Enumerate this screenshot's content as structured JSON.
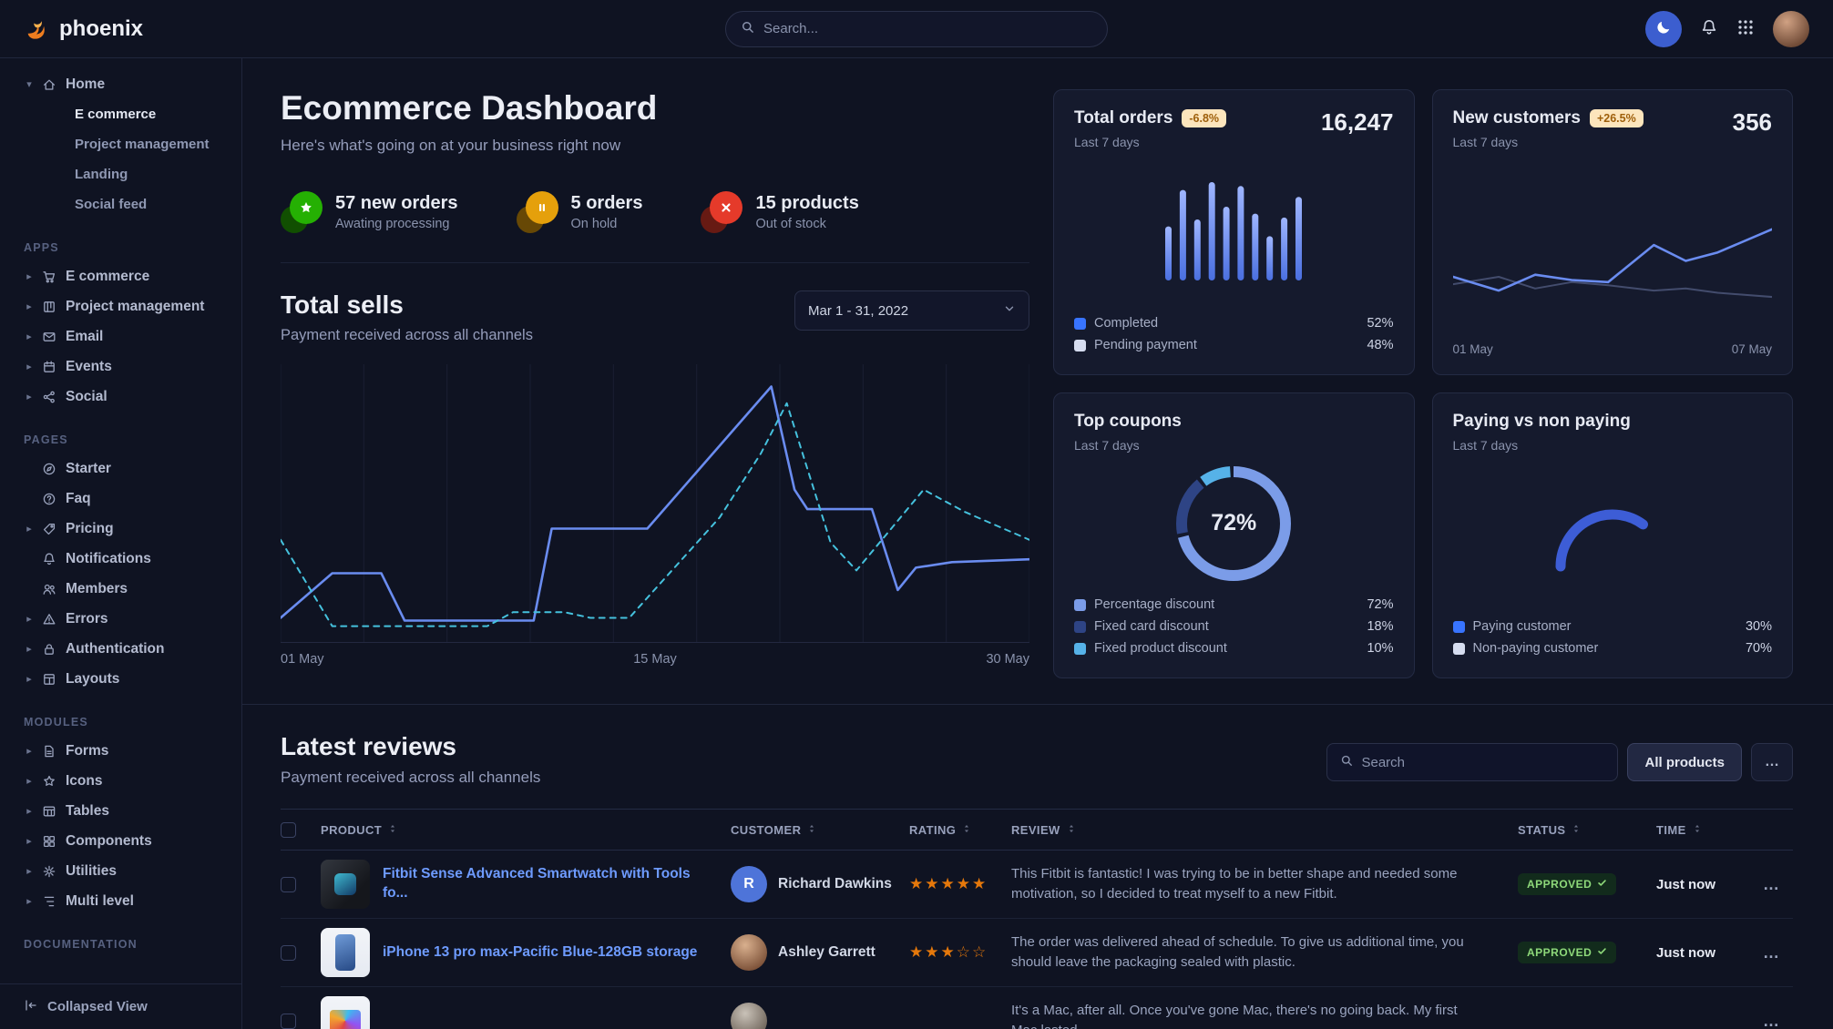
{
  "colors": {
    "accent": "#3874ff",
    "success": "#25b003",
    "warning": "#e5780b",
    "danger": "#ec2e01"
  },
  "topbar": {
    "brand": "phoenix",
    "search_placeholder": "Search..."
  },
  "sidebar": {
    "footer_label": "Collapsed View",
    "sections": [
      {
        "heading": "",
        "items": [
          {
            "label": "Home",
            "icon": "home",
            "caret": "down",
            "children": [
              {
                "label": "E commerce",
                "active": true
              },
              {
                "label": "Project management"
              },
              {
                "label": "Landing"
              },
              {
                "label": "Social feed"
              }
            ]
          }
        ]
      },
      {
        "heading": "APPS",
        "items": [
          {
            "label": "E commerce",
            "icon": "cart",
            "caret": "right"
          },
          {
            "label": "Project management",
            "icon": "kanban",
            "caret": "right"
          },
          {
            "label": "Email",
            "icon": "envelope",
            "caret": "right"
          },
          {
            "label": "Events",
            "icon": "calendar",
            "caret": "right"
          },
          {
            "label": "Social",
            "icon": "share",
            "caret": "right"
          }
        ]
      },
      {
        "heading": "PAGES",
        "items": [
          {
            "label": "Starter",
            "icon": "compass"
          },
          {
            "label": "Faq",
            "icon": "question"
          },
          {
            "label": "Pricing",
            "icon": "tag",
            "caret": "right"
          },
          {
            "label": "Notifications",
            "icon": "bell"
          },
          {
            "label": "Members",
            "icon": "users"
          },
          {
            "label": "Errors",
            "icon": "warning",
            "caret": "right"
          },
          {
            "label": "Authentication",
            "icon": "lock",
            "caret": "right"
          },
          {
            "label": "Layouts",
            "icon": "layout",
            "caret": "right"
          }
        ]
      },
      {
        "heading": "MODULES",
        "items": [
          {
            "label": "Forms",
            "icon": "file",
            "caret": "right"
          },
          {
            "label": "Icons",
            "icon": "star",
            "caret": "right"
          },
          {
            "label": "Tables",
            "icon": "table",
            "caret": "right"
          },
          {
            "label": "Components",
            "icon": "blocks",
            "caret": "right"
          },
          {
            "label": "Utilities",
            "icon": "gear",
            "caret": "right"
          },
          {
            "label": "Multi level",
            "icon": "tree",
            "caret": "right"
          }
        ]
      },
      {
        "heading": "DOCUMENTATION",
        "items": []
      }
    ]
  },
  "header": {
    "title": "Ecommerce Dashboard",
    "subtitle": "Here's what's going on at your business right now"
  },
  "stats": [
    {
      "value": "57 new orders",
      "caption": "Awating processing",
      "icon": "star-badge",
      "color": "#25b003"
    },
    {
      "value": "5 orders",
      "caption": "On hold",
      "icon": "pause-badge",
      "color": "#e5a00b"
    },
    {
      "value": "15 products",
      "caption": "Out of stock",
      "icon": "x-badge",
      "color": "#e53a2a"
    }
  ],
  "total_sells": {
    "title": "Total sells",
    "subtitle": "Payment received across all channels",
    "date_range": "Mar 1 - 31, 2022"
  },
  "cards": {
    "total_orders": {
      "title": "Total orders",
      "badge": "-6.8%",
      "period": "Last 7 days",
      "value": "16,247",
      "legend": [
        {
          "label": "Completed",
          "percent": "52%",
          "color": "#3874ff"
        },
        {
          "label": "Pending payment",
          "percent": "48%",
          "color": "#d6ddf0"
        }
      ]
    },
    "new_customers": {
      "title": "New customers",
      "badge": "+26.5%",
      "period": "Last 7 days",
      "value": "356",
      "x_labels": [
        "01 May",
        "07 May"
      ]
    },
    "top_coupons": {
      "title": "Top coupons",
      "period": "Last 7 days",
      "center_label": "72%",
      "legend": [
        {
          "label": "Percentage discount",
          "percent": "72%",
          "color": "#7b9ce8"
        },
        {
          "label": "Fixed card discount",
          "percent": "18%",
          "color": "#2e4485"
        },
        {
          "label": "Fixed product discount",
          "percent": "10%",
          "color": "#56b2e8"
        }
      ]
    },
    "paying": {
      "title": "Paying vs non paying",
      "period": "Last 7 days",
      "legend": [
        {
          "label": "Paying customer",
          "percent": "30%",
          "color": "#3874ff"
        },
        {
          "label": "Non-paying customer",
          "percent": "70%",
          "color": "#d6ddf0"
        }
      ]
    }
  },
  "chart_data": [
    {
      "id": "total-sells",
      "type": "line",
      "title": "Total sells",
      "x_labels": [
        "01 May",
        "15 May",
        "30 May"
      ],
      "x_range": [
        1,
        30
      ],
      "y_range": [
        0,
        100
      ],
      "grid": true,
      "series": [
        {
          "name": "payment-solid",
          "color": "#6a8cf0",
          "style": "solid",
          "width": 2.6,
          "points": [
            [
              1,
              9
            ],
            [
              3,
              25
            ],
            [
              4.9,
              25
            ],
            [
              5.8,
              8
            ],
            [
              10.8,
              8
            ],
            [
              11.5,
              41
            ],
            [
              15.2,
              41
            ],
            [
              20,
              92
            ],
            [
              20.9,
              55
            ],
            [
              21.4,
              48
            ],
            [
              23.9,
              48
            ],
            [
              24.9,
              19
            ],
            [
              25.6,
              27
            ],
            [
              27,
              29
            ],
            [
              30,
              30
            ]
          ]
        },
        {
          "name": "payment-dashed",
          "color": "#45c1dd",
          "style": "dashed",
          "width": 2,
          "points": [
            [
              1,
              37
            ],
            [
              3,
              6
            ],
            [
              9,
              6
            ],
            [
              10,
              11
            ],
            [
              12,
              11
            ],
            [
              13,
              9
            ],
            [
              14.5,
              9
            ],
            [
              18,
              45
            ],
            [
              19.6,
              68
            ],
            [
              20.6,
              86
            ],
            [
              22.3,
              36
            ],
            [
              23.3,
              26
            ],
            [
              25.9,
              55
            ],
            [
              27.5,
              47
            ],
            [
              30,
              37
            ]
          ]
        }
      ]
    },
    {
      "id": "total-orders",
      "type": "bar",
      "values": [
        55,
        92,
        62,
        100,
        75,
        96,
        68,
        45,
        64,
        85
      ],
      "ylim": [
        0,
        100
      ]
    },
    {
      "id": "new-customers",
      "type": "line",
      "x_labels": [
        "01 May",
        "07 May"
      ],
      "x_range": [
        0,
        7
      ],
      "y_range": [
        0,
        110
      ],
      "grid": false,
      "series": [
        {
          "name": "secondary",
          "color": "#434c6d",
          "style": "solid",
          "width": 2,
          "points": [
            [
              0,
              48
            ],
            [
              1,
              55
            ],
            [
              1.8,
              44
            ],
            [
              2.6,
              50
            ],
            [
              3.4,
              47
            ],
            [
              4.4,
              42
            ],
            [
              5.1,
              44
            ],
            [
              5.8,
              40
            ],
            [
              7,
              36
            ]
          ]
        },
        {
          "name": "primary",
          "color": "#6a8cf0",
          "style": "solid",
          "width": 2.6,
          "points": [
            [
              0,
              55
            ],
            [
              1,
              42
            ],
            [
              1.8,
              57
            ],
            [
              2.6,
              52
            ],
            [
              3.4,
              50
            ],
            [
              4.4,
              85
            ],
            [
              5.1,
              70
            ],
            [
              5.8,
              78
            ],
            [
              7,
              100
            ]
          ]
        }
      ]
    },
    {
      "id": "top-coupons",
      "type": "donut",
      "center_label": "72%",
      "segments": [
        {
          "label": "Percentage discount",
          "value": 72,
          "color": "#7b9ce8"
        },
        {
          "label": "Fixed card discount",
          "value": 18,
          "color": "#2e4485"
        },
        {
          "label": "Fixed product discount",
          "value": 10,
          "color": "#56b2e8"
        }
      ]
    },
    {
      "id": "paying-gauge",
      "type": "gauge",
      "arc_percent": 70,
      "color": "#3d5dd6",
      "segments": [
        {
          "label": "Paying customer",
          "value": 30
        },
        {
          "label": "Non-paying customer",
          "value": 70
        }
      ]
    }
  ],
  "reviews": {
    "title": "Latest reviews",
    "subtitle": "Payment received across all channels",
    "search_placeholder": "Search",
    "filter_button": "All products",
    "more_button": "…",
    "row_menu": "…",
    "columns": [
      "PRODUCT",
      "CUSTOMER",
      "RATING",
      "REVIEW",
      "STATUS",
      "TIME"
    ],
    "rows": [
      {
        "product": "Fitbit Sense Advanced Smartwatch with Tools fo...",
        "thumb": "fitbit",
        "customer": "Richard Dawkins",
        "avatar": {
          "type": "initial",
          "text": "R"
        },
        "rating": 5,
        "review": "This Fitbit is fantastic! I was trying to be in better shape and needed some motivation, so I decided to treat myself to a new Fitbit.",
        "status": "APPROVED",
        "time": "Just now"
      },
      {
        "product": "iPhone 13 pro max-Pacific Blue-128GB storage",
        "thumb": "iphone",
        "customer": "Ashley Garrett",
        "avatar": {
          "type": "photo",
          "variant": "p1"
        },
        "rating": 3,
        "review": "The order was delivered ahead of schedule. To give us additional time, you should leave the packaging sealed with plastic.",
        "status": "APPROVED",
        "time": "Just now"
      },
      {
        "product": "",
        "thumb": "mac",
        "customer": "",
        "avatar": {
          "type": "photo",
          "variant": "p2"
        },
        "rating": null,
        "review": "It's a Mac, after all. Once you've gone Mac, there's no going back. My first Mac lasted",
        "status": "",
        "time": ""
      }
    ]
  }
}
